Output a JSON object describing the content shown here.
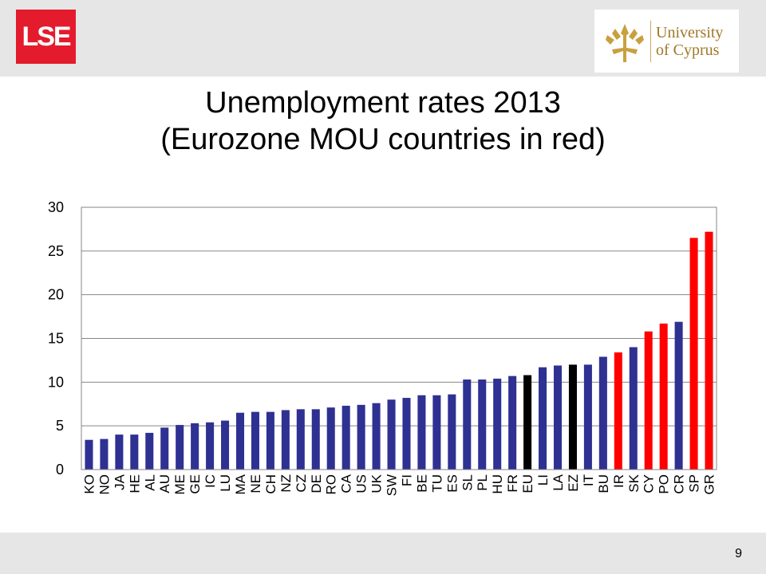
{
  "header": {
    "lse_logo_text": "LSE",
    "ucy_logo_line1": "University",
    "ucy_logo_line2": "of Cyprus"
  },
  "title": {
    "line1": "Unemployment rates 2013",
    "line2": "(Eurozone MOU countries in red)"
  },
  "page_number": "9",
  "colors": {
    "default": "#2e3192",
    "mou": "#ff0000",
    "aggregate": "#000000",
    "lse": "#e41b2c",
    "ucy_gold": "#c8a040"
  },
  "chart_data": {
    "type": "bar",
    "title": "",
    "xlabel": "",
    "ylabel": "",
    "ylim": [
      0,
      30
    ],
    "yticks": [
      0,
      5,
      10,
      15,
      20,
      25,
      30
    ],
    "grid": true,
    "legend": "none",
    "categories": [
      "KO",
      "NO",
      "JA",
      "HE",
      "AL",
      "AU",
      "ME",
      "GE",
      "IC",
      "LU",
      "MA",
      "NE",
      "CH",
      "NZ",
      "CZ",
      "DE",
      "RO",
      "CA",
      "US",
      "UK",
      "SW",
      "FI",
      "BE",
      "TU",
      "ES",
      "SL",
      "PL",
      "HU",
      "FR",
      "EU",
      "LI",
      "LA",
      "EZ",
      "IT",
      "BU",
      "IR",
      "SK",
      "CY",
      "PO",
      "CR",
      "SP",
      "GR"
    ],
    "values": [
      3.4,
      3.5,
      4.0,
      4.0,
      4.2,
      4.8,
      5.1,
      5.3,
      5.4,
      5.6,
      6.5,
      6.6,
      6.6,
      6.8,
      6.9,
      6.9,
      7.1,
      7.3,
      7.4,
      7.6,
      8.0,
      8.2,
      8.5,
      8.5,
      8.6,
      10.3,
      10.3,
      10.4,
      10.7,
      10.8,
      11.7,
      11.9,
      12.0,
      12.0,
      12.9,
      13.4,
      14.0,
      15.8,
      16.7,
      16.9,
      26.5,
      27.2
    ],
    "groups": [
      "default",
      "default",
      "default",
      "default",
      "default",
      "default",
      "default",
      "default",
      "default",
      "default",
      "default",
      "default",
      "default",
      "default",
      "default",
      "default",
      "default",
      "default",
      "default",
      "default",
      "default",
      "default",
      "default",
      "default",
      "default",
      "default",
      "default",
      "default",
      "default",
      "aggregate",
      "default",
      "default",
      "aggregate",
      "default",
      "default",
      "mou",
      "default",
      "mou",
      "mou",
      "default",
      "mou",
      "mou"
    ]
  }
}
